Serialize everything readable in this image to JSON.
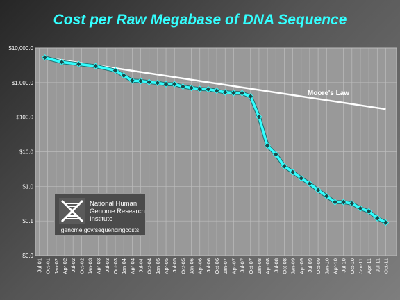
{
  "chart_data": {
    "type": "line",
    "title": "Cost per Raw Megabase of DNA Sequence",
    "y_scale": "log",
    "ylim": [
      0.01,
      10000
    ],
    "ytick_labels": [
      "$10,000.0",
      "$1,000.0",
      "$100.0",
      "$10.0",
      "$1.0",
      "$0.1",
      "$0.0"
    ],
    "ytick_values": [
      10000,
      1000,
      100,
      10,
      1,
      0.1,
      0.01
    ],
    "xtick_labels": [
      "Jul-01",
      "Oct-01",
      "Jan-02",
      "Apr-02",
      "Jul-02",
      "Oct-02",
      "Jan-03",
      "Apr-03",
      "Jul-03",
      "Oct-03",
      "Jan-04",
      "Apr-04",
      "Jul-04",
      "Oct-04",
      "Jan-05",
      "Apr-05",
      "Jul-05",
      "Oct-05",
      "Jan-06",
      "Apr-06",
      "Jul-06",
      "Oct-06",
      "Jan-07",
      "Apr-07",
      "Jul-07",
      "Oct-07",
      "Jan-08",
      "Apr-08",
      "Jul-08",
      "Oct-08",
      "Jan-09",
      "Apr-09",
      "Jul-09",
      "Oct-09",
      "Jan-10",
      "Apr-10",
      "Jul-10",
      "Oct-10",
      "Jan-11",
      "Apr-11",
      "Jul-11",
      "Oct-11"
    ],
    "grid": true,
    "series": [
      {
        "values": [
          {
            "x": "Sep-01",
            "y": 5292
          },
          {
            "x": "Mar-02",
            "y": 3898
          },
          {
            "x": "Sep-02",
            "y": 3413
          },
          {
            "x": "Mar-03",
            "y": 2986
          },
          {
            "x": "Oct-03",
            "y": 2230
          },
          {
            "x": "Jan-04",
            "y": 1598
          },
          {
            "x": "Apr-04",
            "y": 1136
          },
          {
            "x": "Jul-04",
            "y": 1107
          },
          {
            "x": "Oct-04",
            "y": 1028
          },
          {
            "x": "Jan-05",
            "y": 974
          },
          {
            "x": "Apr-05",
            "y": 897
          },
          {
            "x": "Jul-05",
            "y": 898
          },
          {
            "x": "Oct-05",
            "y": 766
          },
          {
            "x": "Jan-06",
            "y": 699
          },
          {
            "x": "Apr-06",
            "y": 651
          },
          {
            "x": "Jul-06",
            "y": 636
          },
          {
            "x": "Oct-06",
            "y": 581
          },
          {
            "x": "Jan-07",
            "y": 522
          },
          {
            "x": "Apr-07",
            "y": 502
          },
          {
            "x": "Jul-07",
            "y": 495
          },
          {
            "x": "Oct-07",
            "y": 397
          },
          {
            "x": "Jan-08",
            "y": 102
          },
          {
            "x": "Apr-08",
            "y": 15.03
          },
          {
            "x": "Jul-08",
            "y": 8.36
          },
          {
            "x": "Oct-08",
            "y": 3.81
          },
          {
            "x": "Jan-09",
            "y": 2.59
          },
          {
            "x": "Apr-09",
            "y": 1.72
          },
          {
            "x": "Jul-09",
            "y": 1.2
          },
          {
            "x": "Oct-09",
            "y": 0.78
          },
          {
            "x": "Jan-10",
            "y": 0.52
          },
          {
            "x": "Apr-10",
            "y": 0.35
          },
          {
            "x": "Jul-10",
            "y": 0.35
          },
          {
            "x": "Oct-10",
            "y": 0.32
          },
          {
            "x": "Jan-11",
            "y": 0.23
          },
          {
            "x": "Apr-11",
            "y": 0.19
          },
          {
            "x": "Jul-11",
            "y": 0.12
          },
          {
            "x": "Oct-11",
            "y": 0.09
          }
        ],
        "color": "#33ffff",
        "marker": "diamond"
      },
      {
        "name": "Moore's Law",
        "values": [
          {
            "x": "Sep-01",
            "y": 5292
          },
          {
            "x": "Oct-11",
            "y": 170
          }
        ],
        "color": "#ffffff"
      }
    ]
  },
  "logo": {
    "org_line1": "National Human",
    "org_line2": "Genome Research",
    "org_line3": "Institute",
    "url": "genome.gov/sequencingcosts"
  },
  "colors": {
    "title": "#33ffff",
    "series": "#33ffff",
    "marker": "#1a4a4a",
    "moore": "#ffffff",
    "plot_bg": "#999999",
    "grid": "#bdbdbd"
  }
}
